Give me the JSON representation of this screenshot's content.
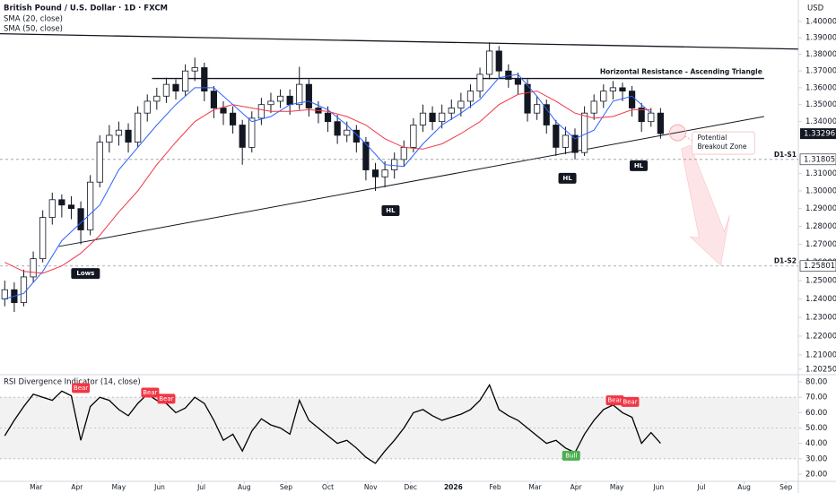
{
  "chart_data": [
    {
      "type": "candlestick",
      "title": "British Pound / U.S. Dollar · 1D · FXCM",
      "y_axis_title": "USD",
      "log_scale": true,
      "xlim": [
        -0.5,
        83.5
      ],
      "ylim": [
        1.1996,
        1.4132
      ],
      "yticks": [
        {
          "value": 1.4,
          "label": "1.40000"
        },
        {
          "value": 1.39,
          "label": "1.39000"
        },
        {
          "value": 1.38,
          "label": "1.38000"
        },
        {
          "value": 1.37,
          "label": "1.37000"
        },
        {
          "value": 1.36,
          "label": "1.36000"
        },
        {
          "value": 1.35,
          "label": "1.35000"
        },
        {
          "value": 1.34,
          "label": "1.34000"
        },
        {
          "value": 1.31,
          "label": "1.31000"
        },
        {
          "value": 1.3,
          "label": "1.30000"
        },
        {
          "value": 1.29,
          "label": "1.29000"
        },
        {
          "value": 1.28,
          "label": "1.28000"
        },
        {
          "value": 1.27,
          "label": "1.27000"
        },
        {
          "value": 1.26,
          "label": "1.26000"
        },
        {
          "value": 1.25,
          "label": "1.25000"
        },
        {
          "value": 1.24,
          "label": "1.24000"
        },
        {
          "value": 1.23,
          "label": "1.23000"
        },
        {
          "value": 1.22,
          "label": "1.22000"
        },
        {
          "value": 1.21,
          "label": "1.21000"
        },
        {
          "value": 1.2025,
          "label": "1.20250"
        }
      ],
      "x": [
        0,
        1,
        2,
        3,
        4,
        5,
        6,
        7,
        8,
        9,
        10,
        11,
        12,
        13,
        14,
        15,
        16,
        17,
        18,
        19,
        20,
        21,
        22,
        23,
        24,
        25,
        26,
        27,
        28,
        29,
        30,
        31,
        32,
        33,
        34,
        35,
        36,
        37,
        38,
        39,
        40,
        41,
        42,
        43,
        44,
        45,
        46,
        47,
        48,
        49,
        50,
        51,
        52,
        53,
        54,
        55,
        56,
        57,
        58,
        59,
        60,
        61,
        62,
        63,
        64,
        65,
        66,
        67,
        68,
        69
      ],
      "open": [
        1.24,
        1.245,
        1.238,
        1.252,
        1.262,
        1.285,
        1.295,
        1.292,
        1.29,
        1.278,
        1.305,
        1.328,
        1.332,
        1.335,
        1.328,
        1.345,
        1.352,
        1.355,
        1.362,
        1.358,
        1.37,
        1.372,
        1.358,
        1.348,
        1.345,
        1.338,
        1.325,
        1.342,
        1.35,
        1.352,
        1.355,
        1.35,
        1.362,
        1.348,
        1.345,
        1.34,
        1.332,
        1.335,
        1.328,
        1.312,
        1.308,
        1.312,
        1.318,
        1.325,
        1.338,
        1.345,
        1.34,
        1.345,
        1.348,
        1.352,
        1.358,
        1.368,
        1.382,
        1.37,
        1.365,
        1.362,
        1.345,
        1.35,
        1.338,
        1.325,
        1.332,
        1.322,
        1.345,
        1.352,
        1.358,
        1.36,
        1.358,
        1.348,
        1.34,
        1.345
      ],
      "high": [
        1.25,
        1.249,
        1.256,
        1.266,
        1.289,
        1.299,
        1.298,
        1.297,
        1.294,
        1.309,
        1.332,
        1.338,
        1.34,
        1.339,
        1.349,
        1.356,
        1.36,
        1.366,
        1.365,
        1.374,
        1.378,
        1.375,
        1.361,
        1.352,
        1.349,
        1.341,
        1.346,
        1.354,
        1.357,
        1.359,
        1.359,
        1.3725,
        1.365,
        1.352,
        1.349,
        1.344,
        1.34,
        1.338,
        1.331,
        1.316,
        1.317,
        1.322,
        1.329,
        1.342,
        1.35,
        1.349,
        1.35,
        1.353,
        1.357,
        1.362,
        1.372,
        1.3873,
        1.385,
        1.374,
        1.369,
        1.365,
        1.355,
        1.353,
        1.341,
        1.337,
        1.336,
        1.349,
        1.356,
        1.362,
        1.364,
        1.363,
        1.361,
        1.351,
        1.348,
        1.348
      ],
      "low": [
        1.236,
        1.233,
        1.236,
        1.249,
        1.26,
        1.281,
        1.285,
        1.284,
        1.27,
        1.275,
        1.302,
        1.322,
        1.326,
        1.322,
        1.325,
        1.34,
        1.347,
        1.351,
        1.353,
        1.355,
        1.364,
        1.352,
        1.342,
        1.338,
        1.333,
        1.315,
        1.322,
        1.338,
        1.345,
        1.348,
        1.344,
        1.347,
        1.343,
        1.339,
        1.334,
        1.327,
        1.328,
        1.322,
        1.306,
        1.3,
        1.302,
        1.307,
        1.314,
        1.322,
        1.334,
        1.335,
        1.336,
        1.341,
        1.343,
        1.348,
        1.354,
        1.365,
        1.366,
        1.36,
        1.356,
        1.34,
        1.341,
        1.333,
        1.32,
        1.321,
        1.318,
        1.32,
        1.341,
        1.348,
        1.353,
        1.352,
        1.343,
        1.334,
        1.337,
        1.33
      ],
      "close": [
        1.245,
        1.238,
        1.252,
        1.262,
        1.285,
        1.295,
        1.292,
        1.29,
        1.278,
        1.305,
        1.328,
        1.332,
        1.335,
        1.328,
        1.345,
        1.352,
        1.355,
        1.362,
        1.358,
        1.37,
        1.372,
        1.358,
        1.348,
        1.345,
        1.338,
        1.325,
        1.342,
        1.35,
        1.352,
        1.355,
        1.35,
        1.362,
        1.348,
        1.345,
        1.34,
        1.332,
        1.335,
        1.328,
        1.312,
        1.308,
        1.312,
        1.318,
        1.325,
        1.338,
        1.345,
        1.34,
        1.345,
        1.348,
        1.352,
        1.358,
        1.368,
        1.382,
        1.37,
        1.365,
        1.362,
        1.345,
        1.35,
        1.338,
        1.325,
        1.332,
        1.322,
        1.345,
        1.352,
        1.358,
        1.36,
        1.358,
        1.348,
        1.34,
        1.345,
        1.333
      ],
      "series": [
        {
          "name": "SMA (20, close)",
          "color": "#2962ff",
          "x": [
            0,
            2,
            4,
            6,
            8,
            10,
            12,
            14,
            16,
            18,
            20,
            22,
            24,
            26,
            28,
            30,
            32,
            34,
            36,
            38,
            40,
            42,
            44,
            46,
            48,
            50,
            52,
            54,
            56,
            58,
            60,
            62,
            64,
            66,
            68
          ],
          "values": [
            1.24,
            1.243,
            1.255,
            1.272,
            1.282,
            1.292,
            1.312,
            1.325,
            1.338,
            1.35,
            1.36,
            1.36,
            1.35,
            1.34,
            1.343,
            1.35,
            1.352,
            1.347,
            1.338,
            1.327,
            1.315,
            1.314,
            1.327,
            1.338,
            1.345,
            1.353,
            1.366,
            1.368,
            1.355,
            1.34,
            1.33,
            1.335,
            1.352,
            1.355,
            1.345
          ]
        },
        {
          "name": "SMA (50, close)",
          "color": "#f23645",
          "x": [
            0,
            2,
            4,
            6,
            8,
            10,
            12,
            14,
            16,
            18,
            20,
            22,
            24,
            26,
            28,
            30,
            32,
            34,
            36,
            38,
            40,
            42,
            44,
            46,
            48,
            50,
            52,
            54,
            56,
            58,
            60,
            62,
            64,
            66,
            68
          ],
          "values": [
            1.26,
            1.255,
            1.254,
            1.258,
            1.265,
            1.275,
            1.288,
            1.3,
            1.315,
            1.328,
            1.34,
            1.347,
            1.35,
            1.348,
            1.346,
            1.346,
            1.347,
            1.346,
            1.343,
            1.338,
            1.33,
            1.325,
            1.324,
            1.327,
            1.333,
            1.34,
            1.35,
            1.356,
            1.358,
            1.352,
            1.345,
            1.342,
            1.343,
            1.347,
            1.347
          ]
        }
      ],
      "last_price": 1.33296,
      "trendlines": [
        {
          "x": [
            -0.5,
            83.5
          ],
          "y": [
            1.3925,
            1.3832
          ]
        },
        {
          "x": [
            15.5,
            79.9
          ],
          "y": [
            1.3655,
            1.3655
          ],
          "label": "Horizontal Resistance - Ascending Triangle"
        },
        {
          "x": [
            5.7,
            79.9
          ],
          "y": [
            1.2688,
            1.343
          ]
        }
      ],
      "levels": [
        {
          "value": 1.31805,
          "label": "D1-S1"
        },
        {
          "value": 1.25801,
          "label": "D1-S2"
        }
      ],
      "annotations": [
        {
          "text": "Lows",
          "x": 8.5,
          "y": 1.2539
        },
        {
          "text": "HL",
          "x": 40.6,
          "y": 1.2888
        },
        {
          "text": "HL",
          "x": 59.2,
          "y": 1.3072
        },
        {
          "text": "HL",
          "x": 66.7,
          "y": 1.3144
        }
      ],
      "breakout_zone": {
        "x": 70.8,
        "y": 1.3335,
        "lines": [
          "Potential",
          "Breakout Zone"
        ]
      }
    },
    {
      "type": "line",
      "title": "RSI Divergence Indicator (14, close)",
      "xlim": [
        -0.5,
        83.5
      ],
      "ylim": [
        15.3,
        84.7
      ],
      "yticks": [
        {
          "value": 80,
          "label": "80.00"
        },
        {
          "value": 70,
          "label": "70.00"
        },
        {
          "value": 60,
          "label": "60.00"
        },
        {
          "value": 50,
          "label": "50.00"
        },
        {
          "value": 40,
          "label": "40.00"
        },
        {
          "value": 30,
          "label": "30.00"
        },
        {
          "value": 20,
          "label": "20.00"
        }
      ],
      "xticks": [
        {
          "value": 3.3,
          "label": "Mar"
        },
        {
          "value": 7.6,
          "label": "Apr"
        },
        {
          "value": 12.0,
          "label": "May"
        },
        {
          "value": 16.3,
          "label": "Jun"
        },
        {
          "value": 20.7,
          "label": "Jul"
        },
        {
          "value": 25.2,
          "label": "Aug"
        },
        {
          "value": 29.6,
          "label": "Sep"
        },
        {
          "value": 34.0,
          "label": "Oct"
        },
        {
          "value": 38.5,
          "label": "Nov"
        },
        {
          "value": 42.7,
          "label": "Dec"
        },
        {
          "value": 47.2,
          "label": "2026",
          "bold": true
        },
        {
          "value": 51.6,
          "label": "Feb"
        },
        {
          "value": 55.8,
          "label": "Mar"
        },
        {
          "value": 60.1,
          "label": "Apr"
        },
        {
          "value": 64.4,
          "label": "May"
        },
        {
          "value": 68.8,
          "label": "Jun"
        },
        {
          "value": 73.3,
          "label": "Jul"
        },
        {
          "value": 77.8,
          "label": "Aug"
        },
        {
          "value": 82.2,
          "label": "Sep"
        }
      ],
      "band": [
        30,
        70
      ],
      "ref_lines": [
        70,
        50,
        30
      ],
      "series": [
        {
          "name": "RSI",
          "color": "#000000",
          "x": [
            0,
            1,
            2,
            3,
            4,
            5,
            6,
            7,
            8,
            9,
            10,
            11,
            12,
            13,
            14,
            15,
            16,
            17,
            18,
            19,
            20,
            21,
            22,
            23,
            24,
            25,
            26,
            27,
            28,
            29,
            30,
            31,
            32,
            33,
            34,
            35,
            36,
            37,
            38,
            39,
            40,
            41,
            42,
            43,
            44,
            45,
            46,
            47,
            48,
            49,
            50,
            51,
            52,
            53,
            54,
            55,
            56,
            57,
            58,
            59,
            60,
            61,
            62,
            63,
            64,
            65,
            66,
            67,
            68,
            69
          ],
          "values": [
            45,
            55,
            64,
            72,
            70,
            68,
            74,
            71,
            42,
            64,
            70,
            68,
            62,
            58,
            66,
            72,
            68,
            66,
            60,
            63,
            70,
            66,
            55,
            42,
            46,
            35,
            48,
            56,
            52,
            50,
            46,
            68,
            55,
            50,
            45,
            40,
            42,
            37,
            31,
            27,
            35,
            42,
            50,
            60,
            62,
            58,
            55,
            57,
            59,
            62,
            68,
            78,
            62,
            58,
            55,
            50,
            45,
            40,
            42,
            37,
            34,
            46,
            55,
            62,
            65,
            60,
            57,
            40,
            47,
            40
          ]
        }
      ],
      "annotations": [
        {
          "text": "Bear",
          "x": 8.0,
          "y": 76,
          "color": "#f23645"
        },
        {
          "text": "Bear",
          "x": 15.3,
          "y": 73,
          "color": "#f23645"
        },
        {
          "text": "Bear",
          "x": 17.0,
          "y": 69,
          "color": "#f23645"
        },
        {
          "text": "Bear",
          "x": 64.2,
          "y": 68,
          "color": "#f23645"
        },
        {
          "text": "Bear",
          "x": 65.8,
          "y": 67,
          "color": "#f23645"
        },
        {
          "text": "Bull",
          "x": 59.6,
          "y": 32,
          "color": "#4caf50"
        }
      ]
    }
  ]
}
